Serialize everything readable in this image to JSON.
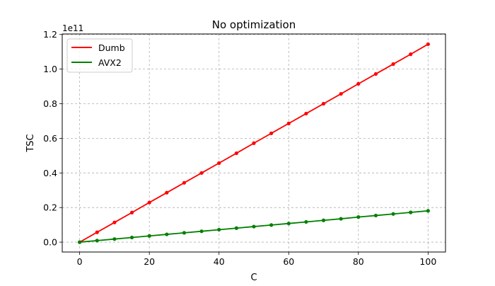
{
  "chart_data": {
    "type": "line",
    "title": "No optimization",
    "xlabel": "C",
    "ylabel": "TSC",
    "offset_text": "1e11",
    "xlim": [
      -5,
      105
    ],
    "ylim": [
      -0.057,
      1.203
    ],
    "x_ticks": [
      0,
      20,
      40,
      60,
      80,
      100
    ],
    "x_tick_labels": [
      "0",
      "20",
      "40",
      "60",
      "80",
      "100"
    ],
    "y_ticks": [
      0.0,
      0.2,
      0.4,
      0.6,
      0.8,
      1.0,
      1.2
    ],
    "y_tick_labels": [
      "0.0",
      "0.2",
      "0.4",
      "0.6",
      "0.8",
      "1.0",
      "1.2"
    ],
    "grid": true,
    "legend_position": "upper-left",
    "x": [
      0,
      5,
      10,
      15,
      20,
      25,
      30,
      35,
      40,
      45,
      50,
      55,
      60,
      65,
      70,
      75,
      80,
      85,
      90,
      95,
      100
    ],
    "series": [
      {
        "name": "Dumb",
        "color": "#ff0000",
        "values": [
          0.0,
          0.057,
          0.114,
          0.171,
          0.229,
          0.286,
          0.343,
          0.4,
          0.457,
          0.514,
          0.572,
          0.629,
          0.686,
          0.743,
          0.8,
          0.857,
          0.915,
          0.972,
          1.029,
          1.086,
          1.144
        ]
      },
      {
        "name": "AVX2",
        "color": "#008000",
        "values": [
          0.0,
          0.009,
          0.018,
          0.027,
          0.036,
          0.045,
          0.054,
          0.063,
          0.072,
          0.081,
          0.09,
          0.099,
          0.108,
          0.117,
          0.126,
          0.135,
          0.145,
          0.154,
          0.163,
          0.172,
          0.181
        ]
      }
    ]
  }
}
